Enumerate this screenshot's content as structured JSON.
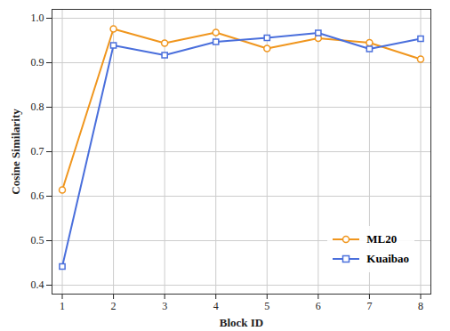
{
  "chart_data": {
    "type": "line",
    "x_label": "Block ID",
    "y_label": "Cosine Similarity",
    "x": [
      1,
      2,
      3,
      4,
      5,
      6,
      7,
      8
    ],
    "series": [
      {
        "name": "ML20",
        "color": "#f0961e",
        "marker": "circle",
        "values": [
          0.614,
          0.976,
          0.944,
          0.968,
          0.932,
          0.955,
          0.945,
          0.908
        ]
      },
      {
        "name": "Kuaibao",
        "color": "#4a6fdc",
        "marker": "square",
        "values": [
          0.442,
          0.939,
          0.917,
          0.947,
          0.956,
          0.967,
          0.931,
          0.954
        ]
      }
    ],
    "xlim": [
      0.8,
      8.2
    ],
    "xticks": [
      1,
      2,
      3,
      4,
      5,
      6,
      7,
      8
    ],
    "ylim": [
      0.38,
      1.02
    ],
    "yticks": [
      0.4,
      0.5,
      0.6,
      0.7,
      0.8,
      0.9,
      {
        "value": 1,
        "label": "1.0"
      }
    ],
    "grid": true,
    "legend": "lower right"
  }
}
